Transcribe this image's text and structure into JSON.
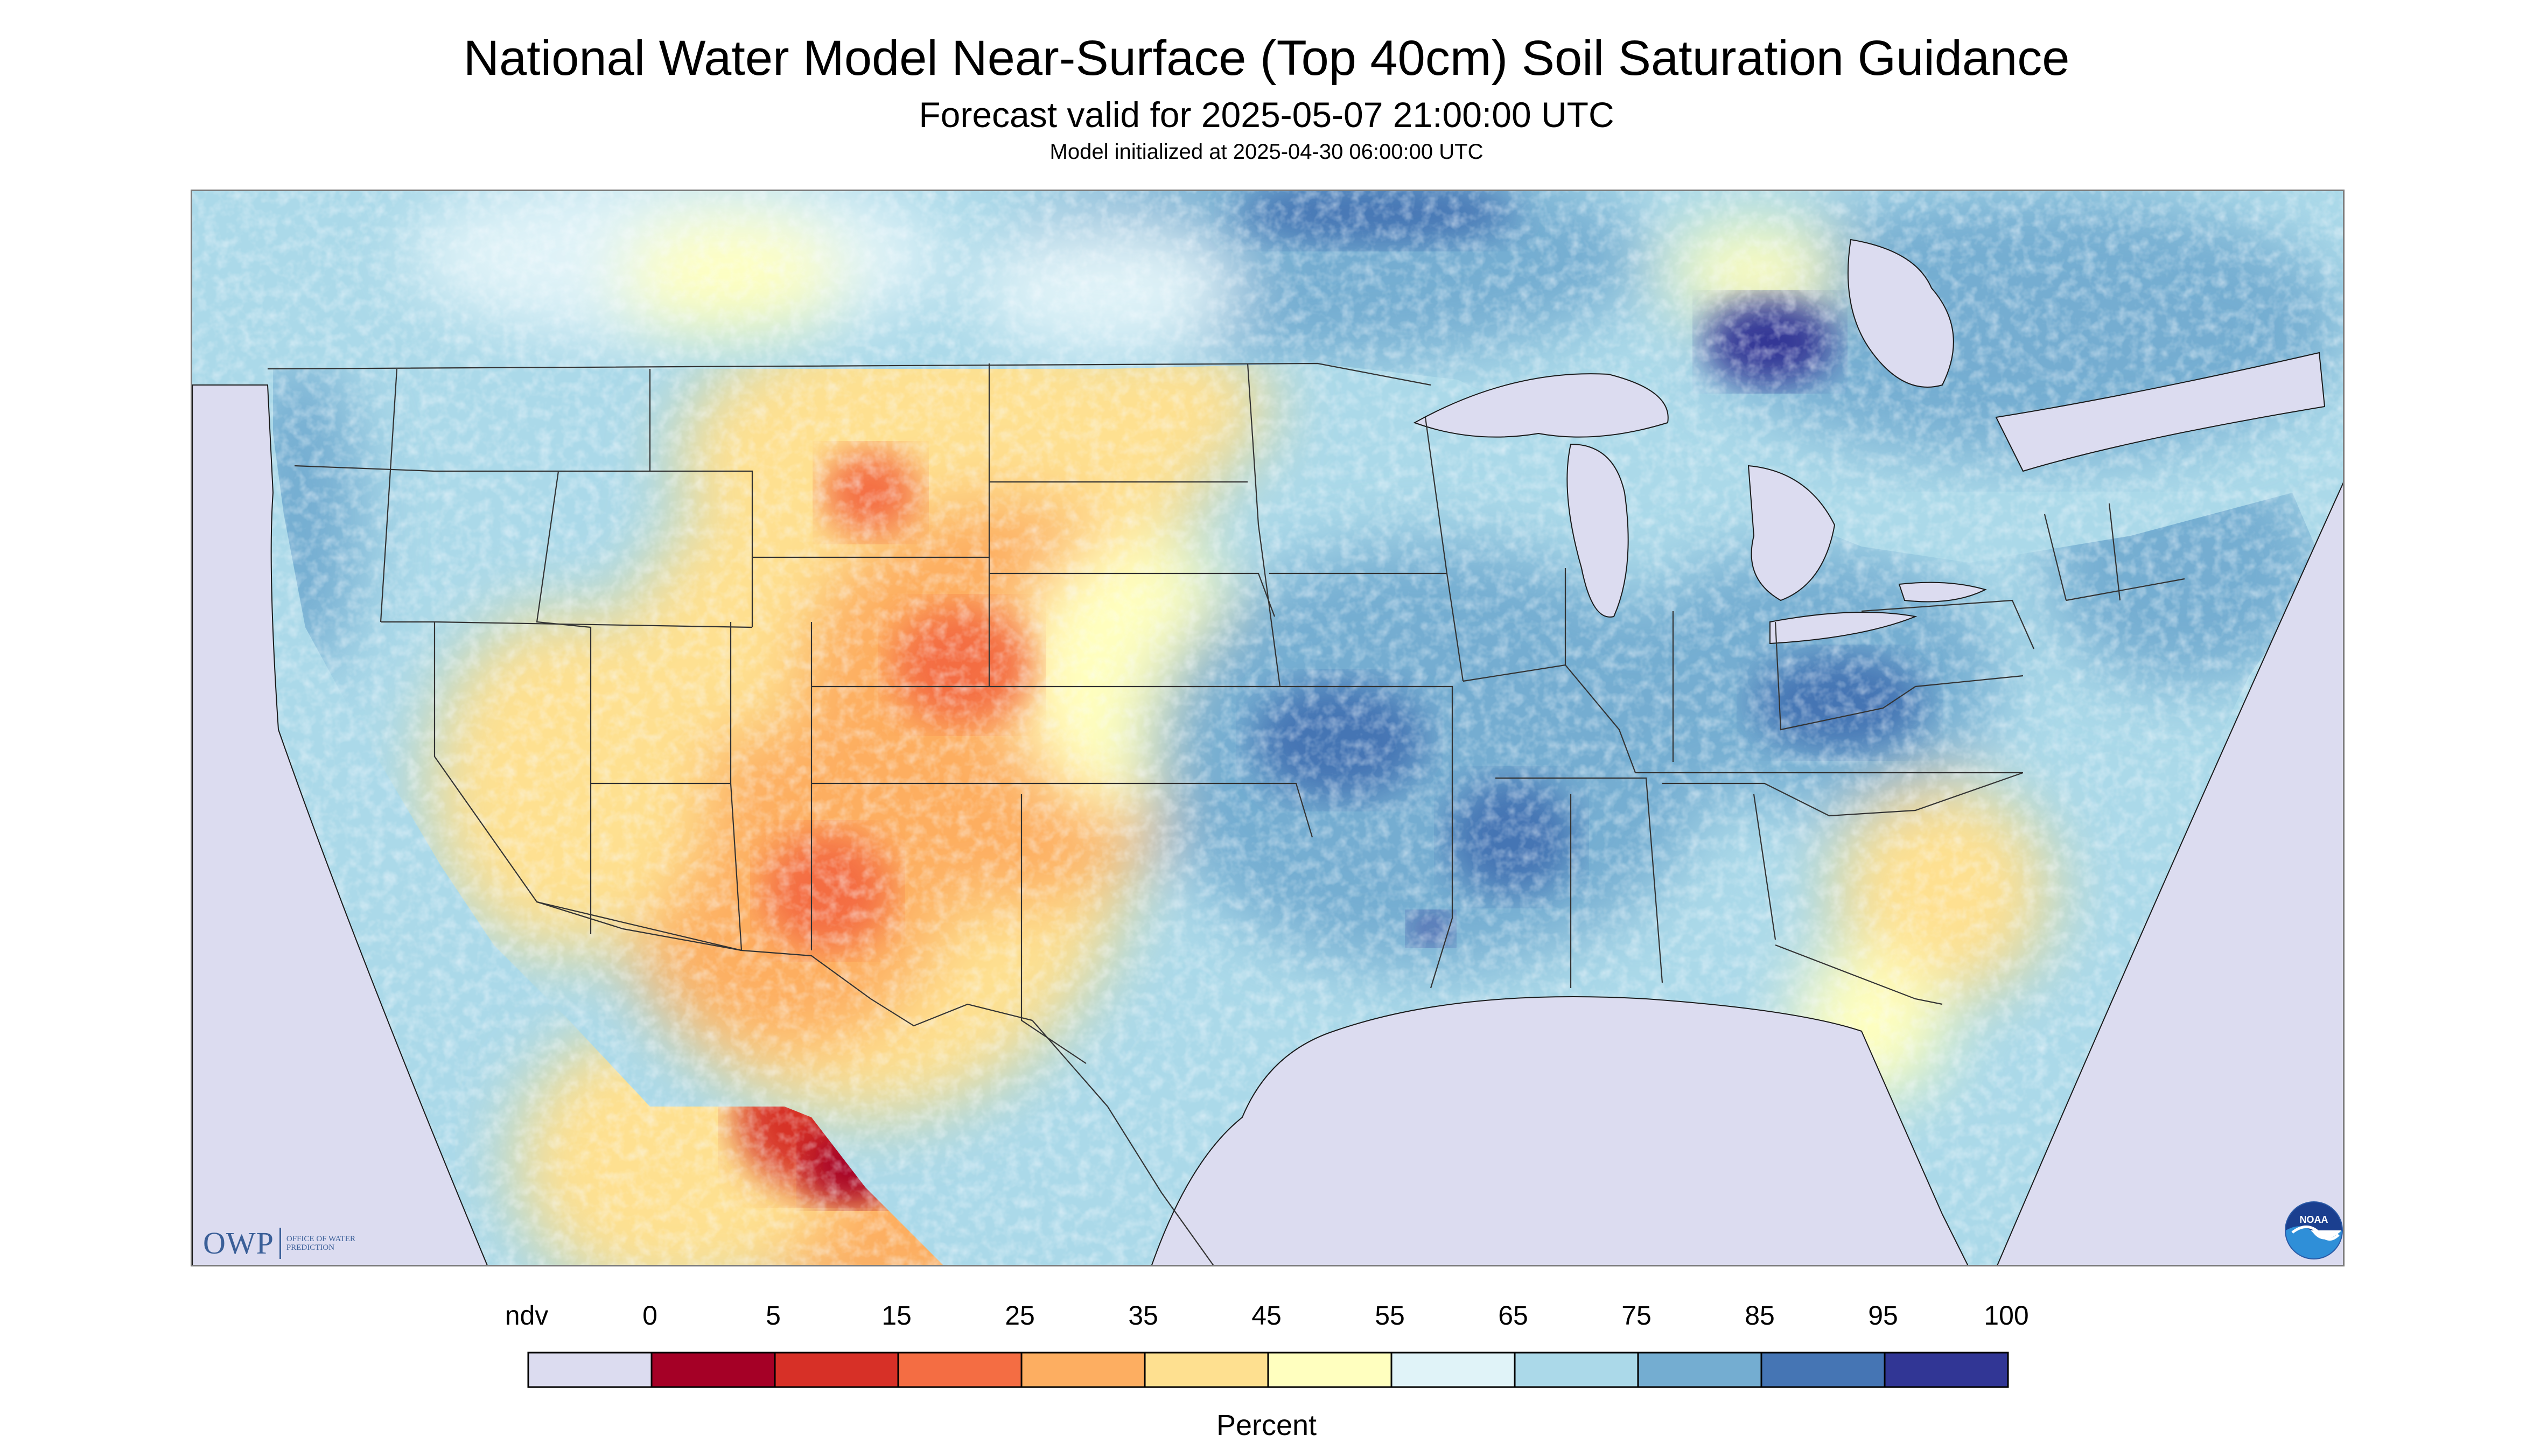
{
  "title": "National Water Model Near-Surface (Top 40cm) Soil Saturation Guidance",
  "subtitle": "Forecast valid for 2025-05-07 21:00:00 UTC",
  "init_line": "Model initialized at 2025-04-30 06:00:00 UTC",
  "colors": {
    "nodata": "#dcdcf0",
    "water": "#dcdcf0",
    "border": "#4a4a4a"
  },
  "logos": {
    "owp_mark": "OWP",
    "owp_name": "Office of Water Prediction",
    "noaa_text": "NOAA"
  },
  "legend": {
    "units_label": "Percent",
    "ndv_label": "ndv",
    "ndv_color": "#dcdcf0",
    "tick_labels": [
      "0",
      "5",
      "15",
      "25",
      "35",
      "45",
      "55",
      "65",
      "75",
      "85",
      "95",
      "100"
    ],
    "bins": [
      {
        "from": "0",
        "to": "5",
        "color": "#a50026"
      },
      {
        "from": "5",
        "to": "15",
        "color": "#d73027"
      },
      {
        "from": "15",
        "to": "25",
        "color": "#f46d43"
      },
      {
        "from": "25",
        "to": "35",
        "color": "#fdae61"
      },
      {
        "from": "35",
        "to": "45",
        "color": "#fee090"
      },
      {
        "from": "45",
        "to": "55",
        "color": "#ffffbf"
      },
      {
        "from": "55",
        "to": "65",
        "color": "#e0f3f8"
      },
      {
        "from": "65",
        "to": "75",
        "color": "#abd9e9"
      },
      {
        "from": "75",
        "to": "85",
        "color": "#74add1"
      },
      {
        "from": "85",
        "to": "95",
        "color": "#4575b4"
      },
      {
        "from": "95",
        "to": "100",
        "color": "#313695"
      }
    ]
  }
}
